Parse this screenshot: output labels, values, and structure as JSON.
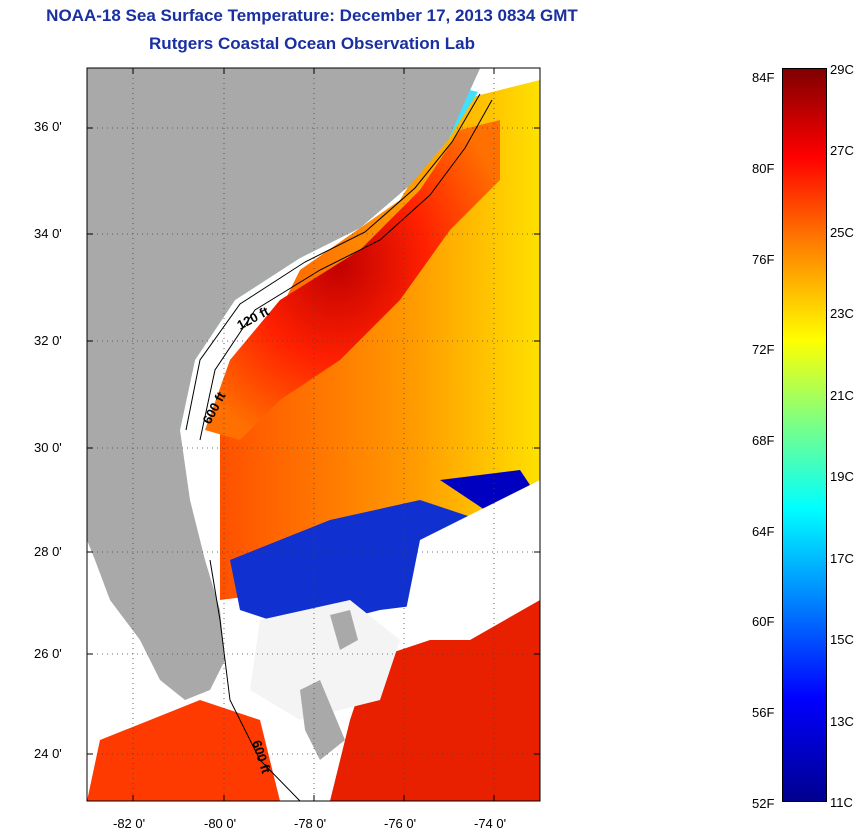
{
  "header": {
    "title": "NOAA-18 Sea Surface Temperature:  December 17, 2013 0834 GMT",
    "subtitle": "Rutgers Coastal Ocean Observation Lab"
  },
  "map": {
    "lat_ticks": [
      "36 0'",
      "34 0'",
      "32 0'",
      "30 0'",
      "28 0'",
      "26 0'",
      "24 0'"
    ],
    "lon_ticks": [
      "-82 0'",
      "-80 0'",
      "-78 0'",
      "-76 0'",
      "-74 0'"
    ],
    "contour_labels": [
      "120 ft",
      "600 ft",
      "600 ft"
    ],
    "colors": {
      "land": "#a9a9a9",
      "warm": "#ff2a00",
      "cold": "#0000d0",
      "cloud": "#ffffff"
    }
  },
  "colorbar": {
    "fahrenheit": [
      "84F",
      "80F",
      "76F",
      "72F",
      "68F",
      "64F",
      "60F",
      "56F",
      "52F"
    ],
    "celsius": [
      "29C",
      "27C",
      "25C",
      "23C",
      "21C",
      "19C",
      "17C",
      "15C",
      "13C",
      "11C"
    ]
  }
}
